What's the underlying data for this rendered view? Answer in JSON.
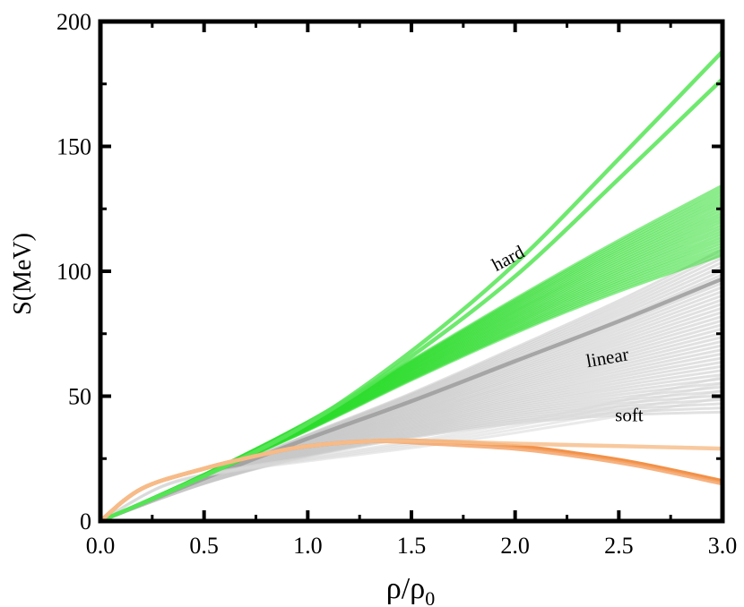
{
  "chart_data": {
    "type": "line",
    "title": "",
    "xlabel": "ρ/ρ",
    "xlabel_sub": "0",
    "ylabel": "S(MeV)",
    "xlim": [
      0.0,
      3.0
    ],
    "ylim": [
      0,
      200
    ],
    "x_ticks": [
      "0.0",
      "0.5",
      "1.0",
      "1.5",
      "2.0",
      "2.5",
      "3.0"
    ],
    "y_ticks": [
      "0",
      "50",
      "100",
      "150",
      "200"
    ],
    "grid": false,
    "annotations": [
      {
        "text": "hard",
        "x": 1.98,
        "y": 103,
        "angle": -28
      },
      {
        "text": "linear",
        "x": 2.45,
        "y": 63,
        "angle": -10
      },
      {
        "text": "soft",
        "x": 2.55,
        "y": 40,
        "angle": 0
      }
    ],
    "series": [
      {
        "name": "linear (gray band)",
        "color": "#c8c8c8",
        "x": [
          0,
          0.5,
          1.0,
          1.5,
          2.0,
          2.5,
          3.0
        ],
        "values": [
          0,
          17,
          33,
          48,
          64,
          80,
          97
        ],
        "spread": [
          0.45,
          1.12
        ],
        "count": 40
      },
      {
        "name": "linear (dark center)",
        "color": "#9c9c9c",
        "x": [
          0,
          0.5,
          1.0,
          1.5,
          2.0,
          2.5,
          3.0
        ],
        "values": [
          0,
          17,
          33,
          48,
          64,
          80,
          97
        ]
      },
      {
        "name": "soft (gray)",
        "color": "#d8d8d8",
        "x": [
          0,
          0.3,
          0.6,
          1.0,
          1.5,
          2.0,
          2.5,
          3.0
        ],
        "values": [
          0,
          14,
          20,
          25,
          31,
          38,
          46,
          55
        ],
        "spread": [
          0.9,
          1.05
        ],
        "count": 4
      },
      {
        "name": "hard (green band)",
        "color": "#2cdc2c",
        "x": [
          0,
          0.5,
          1.0,
          1.5,
          2.0,
          2.5,
          3.0
        ],
        "values": [
          0,
          18,
          37,
          58,
          78,
          96,
          112
        ],
        "spread": [
          0.95,
          1.2
        ],
        "count": 24
      },
      {
        "name": "hard (green upper 1)",
        "color": "#55e555",
        "x": [
          0,
          0.5,
          1.0,
          1.5,
          2.0,
          2.5,
          3.0
        ],
        "values": [
          0,
          18,
          39,
          68,
          103,
          145,
          188
        ]
      },
      {
        "name": "hard (green upper 2)",
        "color": "#55e555",
        "x": [
          0,
          0.5,
          1.0,
          1.5,
          2.0,
          2.5,
          3.0
        ],
        "values": [
          0,
          18,
          39,
          66,
          98,
          137,
          177
        ]
      },
      {
        "name": "soft (orange, main)",
        "color": "#f07e28",
        "x": [
          0,
          0.2,
          0.5,
          0.8,
          1.0,
          1.3,
          1.6,
          2.0,
          2.3,
          2.6,
          3.0
        ],
        "values": [
          0,
          13,
          21,
          27,
          30,
          32,
          32,
          30,
          27,
          23,
          16
        ]
      },
      {
        "name": "soft (orange, lower)",
        "color": "#f4a46a",
        "x": [
          0,
          0.2,
          0.5,
          0.8,
          1.0,
          1.3,
          1.6,
          2.0,
          2.3,
          2.6,
          3.0
        ],
        "values": [
          0,
          13,
          21,
          27,
          30,
          32,
          31,
          29,
          26,
          22,
          15
        ]
      },
      {
        "name": "soft (orange, upper)",
        "color": "#f7c08e",
        "x": [
          0,
          0.2,
          0.5,
          0.8,
          1.0,
          1.3,
          1.6,
          2.0,
          2.5,
          3.0
        ],
        "values": [
          0,
          13,
          21,
          27,
          30,
          32,
          32,
          31,
          30,
          29
        ]
      }
    ]
  }
}
